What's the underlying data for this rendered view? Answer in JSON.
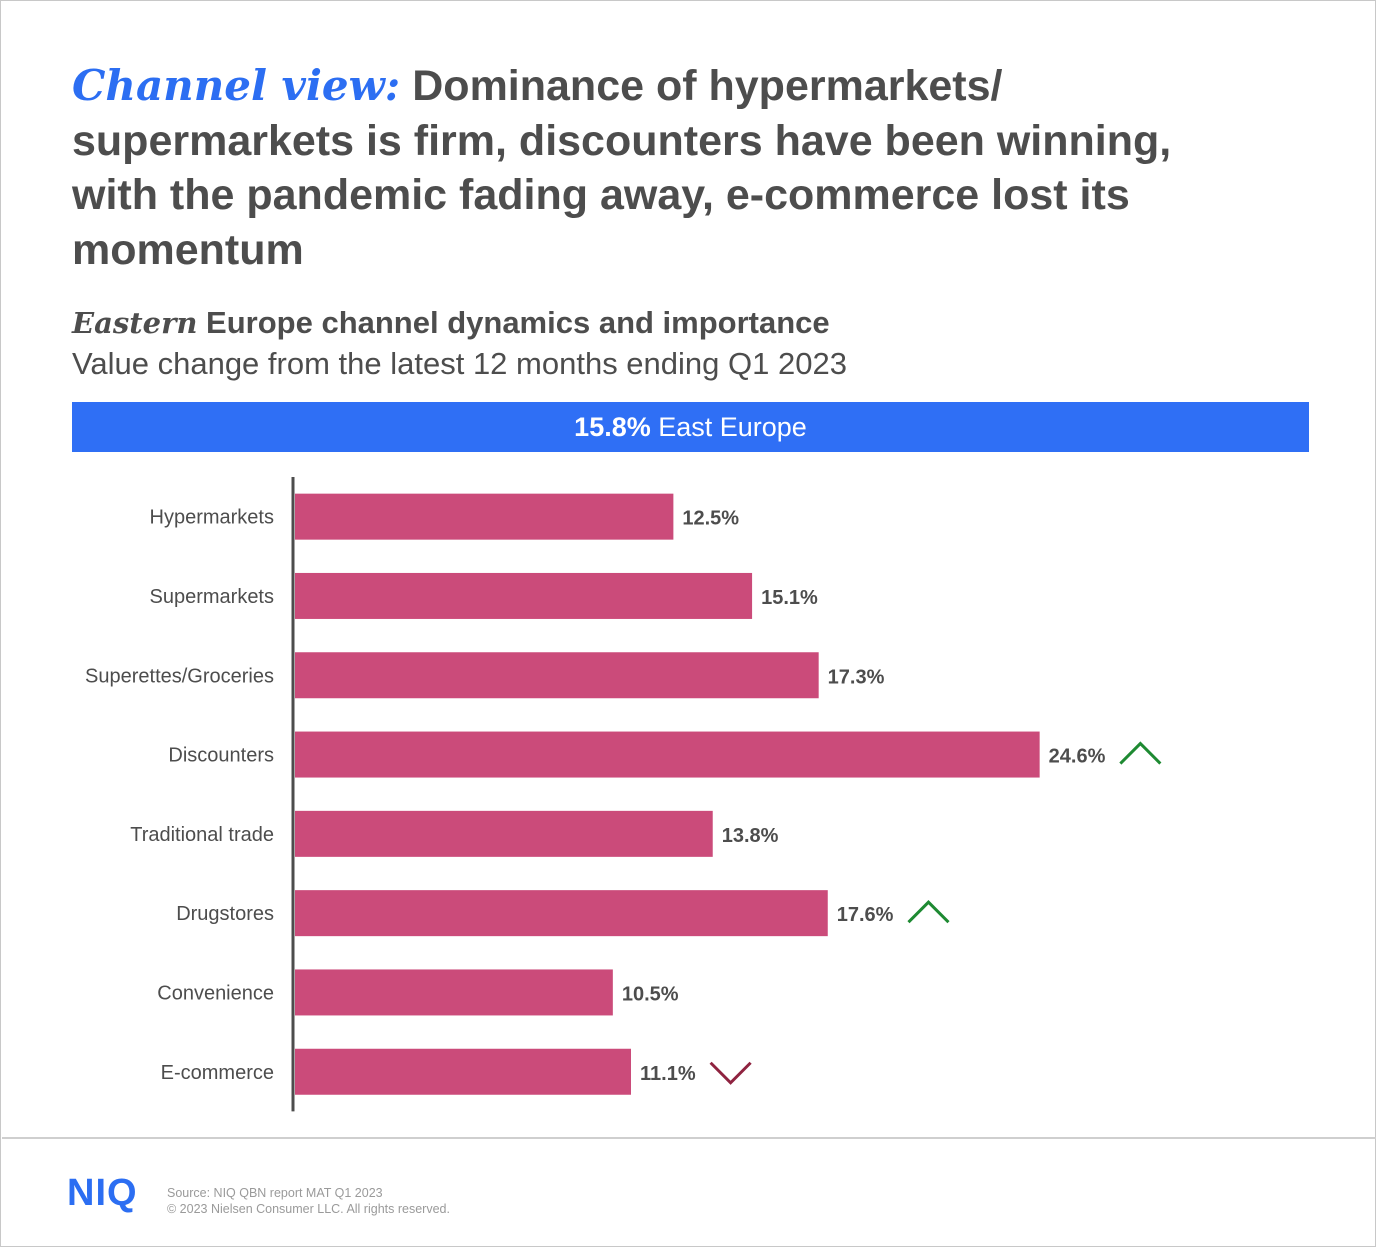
{
  "header": {
    "title_lead": "Channel view:",
    "title_rest": " Dominance of hypermarkets/ supermarkets is firm, discounters have been winning, with the pandemic fading away, e-commerce lost its momentum",
    "subtitle_lead": "Eastern",
    "subtitle_rest": " Europe channel dynamics and importance",
    "subtitle2": "Value change from the latest 12 months ending Q1 2023"
  },
  "banner": {
    "value": "15.8%",
    "label": " East Europe",
    "color": "#2f6ff5"
  },
  "chart_data": {
    "type": "bar",
    "orientation": "horizontal",
    "title": "",
    "xlabel": "",
    "ylabel": "",
    "categories": [
      "Hypermarkets",
      "Supermarkets",
      "Superettes/Groceries",
      "Discounters",
      "Traditional trade",
      "Drugstores",
      "Convenience",
      "E-commerce"
    ],
    "values": [
      12.5,
      15.1,
      17.3,
      24.6,
      13.8,
      17.6,
      10.5,
      11.1
    ],
    "value_labels": [
      "12.5%",
      "15.1%",
      "17.3%",
      "24.6%",
      "13.8%",
      "17.6%",
      "10.5%",
      "11.1%"
    ],
    "trend": [
      "",
      "",
      "",
      "up",
      "",
      "up",
      "",
      "down"
    ],
    "xlim": [
      0,
      37
    ],
    "bar_color": "#cb4b7a",
    "up_color": "#1e8a32",
    "down_color": "#8f2340",
    "grid": false
  },
  "footer": {
    "logo": "NIQ",
    "source": "Source: NIQ QBN report MAT Q1 2023",
    "copyright": "© 2023 Nielsen Consumer LLC. All rights reserved."
  }
}
